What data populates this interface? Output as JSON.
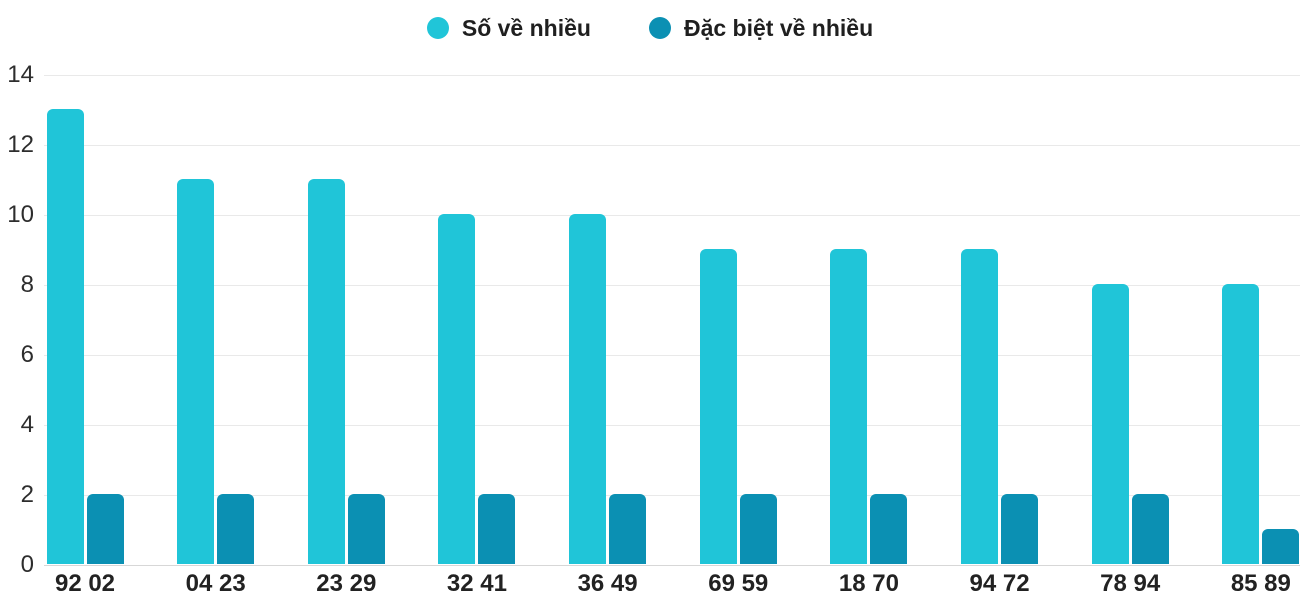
{
  "chart_data": {
    "type": "bar",
    "title": "",
    "xlabel": "",
    "ylabel": "",
    "categories": [
      "92 02",
      "04 23",
      "23 29",
      "32 41",
      "36 49",
      "69 59",
      "18 70",
      "94 72",
      "78 94",
      "85 89"
    ],
    "series": [
      {
        "name": "Số về nhiều",
        "color": "#20c5d8",
        "values": [
          13,
          11,
          11,
          10,
          10,
          9,
          9,
          9,
          8,
          8
        ]
      },
      {
        "name": "Đặc biệt về nhiều",
        "color": "#0b90b3",
        "values": [
          2,
          2,
          2,
          2,
          2,
          2,
          2,
          2,
          2,
          1
        ]
      }
    ],
    "ylim": [
      0,
      14
    ],
    "yticks": [
      0,
      2,
      4,
      6,
      8,
      10,
      12,
      14
    ],
    "grid": true,
    "legend_position": "top-center",
    "colors": {
      "gridline": "#e9e9e9",
      "baseline": "#d7d7d7",
      "tick_text": "#2d2d2d",
      "background": "#ffffff"
    }
  }
}
